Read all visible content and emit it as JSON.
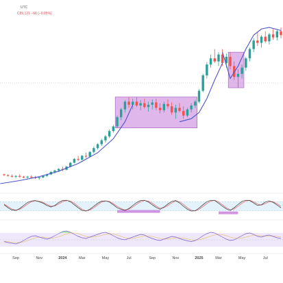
{
  "header": {
    "timezone": "UTC",
    "price_line": "C89,121 −68 (−0.05%)"
  },
  "colors": {
    "up": "#2aa198",
    "down": "#ef5350",
    "curve": "#4b55c9",
    "box_fill": "#c77bd9",
    "stoch_band": "#e3f2fb",
    "stoch_k": "#333333",
    "stoch_d": "#e06060",
    "rsi_line": "#7a5cc9",
    "rsi_band": "#eee8fa",
    "rsi_green": "#9be3a0"
  },
  "chart_data": {
    "type": "candlestick",
    "x_ticks": [
      {
        "label": "Sep",
        "bold": false
      },
      {
        "label": "Nov",
        "bold": false
      },
      {
        "label": "2024",
        "bold": true
      },
      {
        "label": "Mar",
        "bold": false
      },
      {
        "label": "May",
        "bold": false
      },
      {
        "label": "Jul",
        "bold": false
      },
      {
        "label": "Sep",
        "bold": false
      },
      {
        "label": "Nov",
        "bold": false
      },
      {
        "label": "2025",
        "bold": true
      },
      {
        "label": "Mar",
        "bold": false
      },
      {
        "label": "May",
        "bold": false
      },
      {
        "label": "Jul",
        "bold": false
      }
    ],
    "candles": [
      [
        100,
        101,
        98,
        99
      ],
      [
        99,
        100,
        97,
        98
      ],
      [
        98,
        100,
        96,
        97
      ],
      [
        97,
        99,
        95,
        98
      ],
      [
        98,
        100,
        96,
        97
      ],
      [
        97,
        98,
        95,
        96
      ],
      [
        96,
        98,
        94,
        97
      ],
      [
        97,
        99,
        95,
        96
      ],
      [
        96,
        98,
        94,
        95
      ],
      [
        95,
        97,
        93,
        96
      ],
      [
        96,
        99,
        95,
        98
      ],
      [
        98,
        101,
        97,
        100
      ],
      [
        100,
        104,
        99,
        103
      ],
      [
        103,
        106,
        101,
        105
      ],
      [
        105,
        108,
        103,
        107
      ],
      [
        107,
        110,
        104,
        106
      ],
      [
        106,
        111,
        105,
        110
      ],
      [
        110,
        116,
        109,
        115
      ],
      [
        115,
        121,
        114,
        120
      ],
      [
        120,
        124,
        117,
        119
      ],
      [
        119,
        125,
        118,
        124
      ],
      [
        124,
        128,
        121,
        123
      ],
      [
        123,
        130,
        122,
        129
      ],
      [
        129,
        136,
        127,
        134
      ],
      [
        134,
        140,
        132,
        139
      ],
      [
        139,
        146,
        137,
        144
      ],
      [
        144,
        151,
        141,
        149
      ],
      [
        149,
        158,
        147,
        156
      ],
      [
        156,
        164,
        154,
        162
      ],
      [
        162,
        176,
        160,
        174
      ],
      [
        174,
        186,
        170,
        184
      ],
      [
        184,
        196,
        180,
        194
      ],
      [
        194,
        200,
        186,
        190
      ],
      [
        190,
        198,
        184,
        194
      ],
      [
        194,
        200,
        187,
        189
      ],
      [
        189,
        196,
        183,
        192
      ],
      [
        192,
        198,
        185,
        187
      ],
      [
        187,
        194,
        181,
        190
      ],
      [
        190,
        197,
        184,
        193
      ],
      [
        193,
        198,
        183,
        186
      ],
      [
        186,
        192,
        179,
        183
      ],
      [
        183,
        194,
        180,
        191
      ],
      [
        191,
        197,
        185,
        188
      ],
      [
        188,
        193,
        177,
        180
      ],
      [
        180,
        190,
        172,
        186
      ],
      [
        186,
        192,
        180,
        182
      ],
      [
        182,
        188,
        172,
        176
      ],
      [
        176,
        186,
        174,
        184
      ],
      [
        184,
        192,
        180,
        189
      ],
      [
        189,
        196,
        186,
        194
      ],
      [
        194,
        210,
        192,
        208
      ],
      [
        208,
        230,
        206,
        228
      ],
      [
        228,
        245,
        224,
        242
      ],
      [
        242,
        255,
        238,
        250
      ],
      [
        250,
        262,
        244,
        246
      ],
      [
        246,
        258,
        240,
        255
      ],
      [
        255,
        262,
        240,
        244
      ],
      [
        244,
        256,
        238,
        252
      ],
      [
        252,
        258,
        236,
        240
      ],
      [
        240,
        246,
        222,
        226
      ],
      [
        226,
        236,
        212,
        230
      ],
      [
        230,
        242,
        224,
        238
      ],
      [
        238,
        252,
        234,
        250
      ],
      [
        250,
        264,
        246,
        262
      ],
      [
        262,
        276,
        258,
        273
      ],
      [
        273,
        284,
        266,
        270
      ],
      [
        270,
        280,
        264,
        278
      ],
      [
        278,
        285,
        270,
        272
      ],
      [
        272,
        283,
        268,
        281
      ],
      [
        281,
        288,
        274,
        277
      ],
      [
        277,
        287,
        273,
        285
      ],
      [
        285,
        290,
        276,
        280
      ]
    ],
    "y_range": [
      88,
      290
    ],
    "stochastic": {
      "upper_band": 80,
      "lower_band": 20,
      "k": [
        60,
        40,
        25,
        22,
        35,
        55,
        75,
        85,
        88,
        80,
        70,
        55,
        45,
        55,
        75,
        88,
        90,
        80,
        60,
        40,
        22,
        18,
        30,
        50,
        70,
        84,
        86,
        78,
        60,
        40,
        30,
        22,
        35,
        55,
        75,
        88,
        90,
        78,
        60,
        42,
        30,
        45,
        65,
        82,
        88,
        72,
        50,
        30,
        18,
        20,
        38,
        60,
        80,
        90,
        88,
        70,
        50,
        32,
        22,
        40,
        62,
        82,
        90,
        88,
        72,
        55,
        60,
        78,
        86,
        76,
        58,
        40
      ],
      "d": [
        65,
        48,
        32,
        24,
        30,
        45,
        64,
        80,
        86,
        83,
        75,
        62,
        50,
        52,
        65,
        80,
        88,
        85,
        70,
        50,
        30,
        20,
        25,
        40,
        60,
        77,
        85,
        82,
        68,
        50,
        35,
        26,
        30,
        45,
        64,
        80,
        88,
        84,
        70,
        52,
        36,
        40,
        55,
        72,
        85,
        80,
        62,
        40,
        24,
        19,
        30,
        48,
        68,
        84,
        89,
        78,
        60,
        40,
        27,
        32,
        50,
        70,
        85,
        89,
        80,
        64,
        58,
        68,
        80,
        80,
        66,
        50
      ]
    },
    "rsi": {
      "band_upper": 70,
      "band_lower": 30,
      "values": [
        45,
        42,
        40,
        38,
        42,
        48,
        55,
        60,
        62,
        58,
        55,
        52,
        56,
        62,
        68,
        74,
        76,
        72,
        66,
        60,
        56,
        54,
        58,
        62,
        66,
        70,
        72,
        68,
        62,
        56,
        52,
        50,
        54,
        58,
        62,
        66,
        64,
        58,
        54,
        50,
        48,
        52,
        56,
        60,
        58,
        54,
        50,
        47,
        45,
        48,
        54,
        62,
        68,
        72,
        70,
        64,
        58,
        52,
        48,
        50,
        56,
        62,
        68,
        70,
        66,
        60,
        58,
        62,
        64,
        60,
        56,
        54
      ],
      "ma": [
        46,
        45,
        43,
        42,
        42,
        44,
        48,
        52,
        56,
        58,
        58,
        56,
        55,
        56,
        59,
        63,
        67,
        70,
        70,
        68,
        64,
        60,
        58,
        58,
        60,
        63,
        66,
        68,
        67,
        64,
        60,
        56,
        54,
        54,
        56,
        59,
        61,
        61,
        60,
        57,
        54,
        52,
        52,
        54,
        56,
        56,
        55,
        53,
        50,
        49,
        50,
        53,
        57,
        61,
        64,
        66,
        65,
        62,
        58,
        55,
        54,
        55,
        58,
        61,
        63,
        63,
        62,
        61,
        61,
        61,
        60,
        58
      ]
    }
  }
}
